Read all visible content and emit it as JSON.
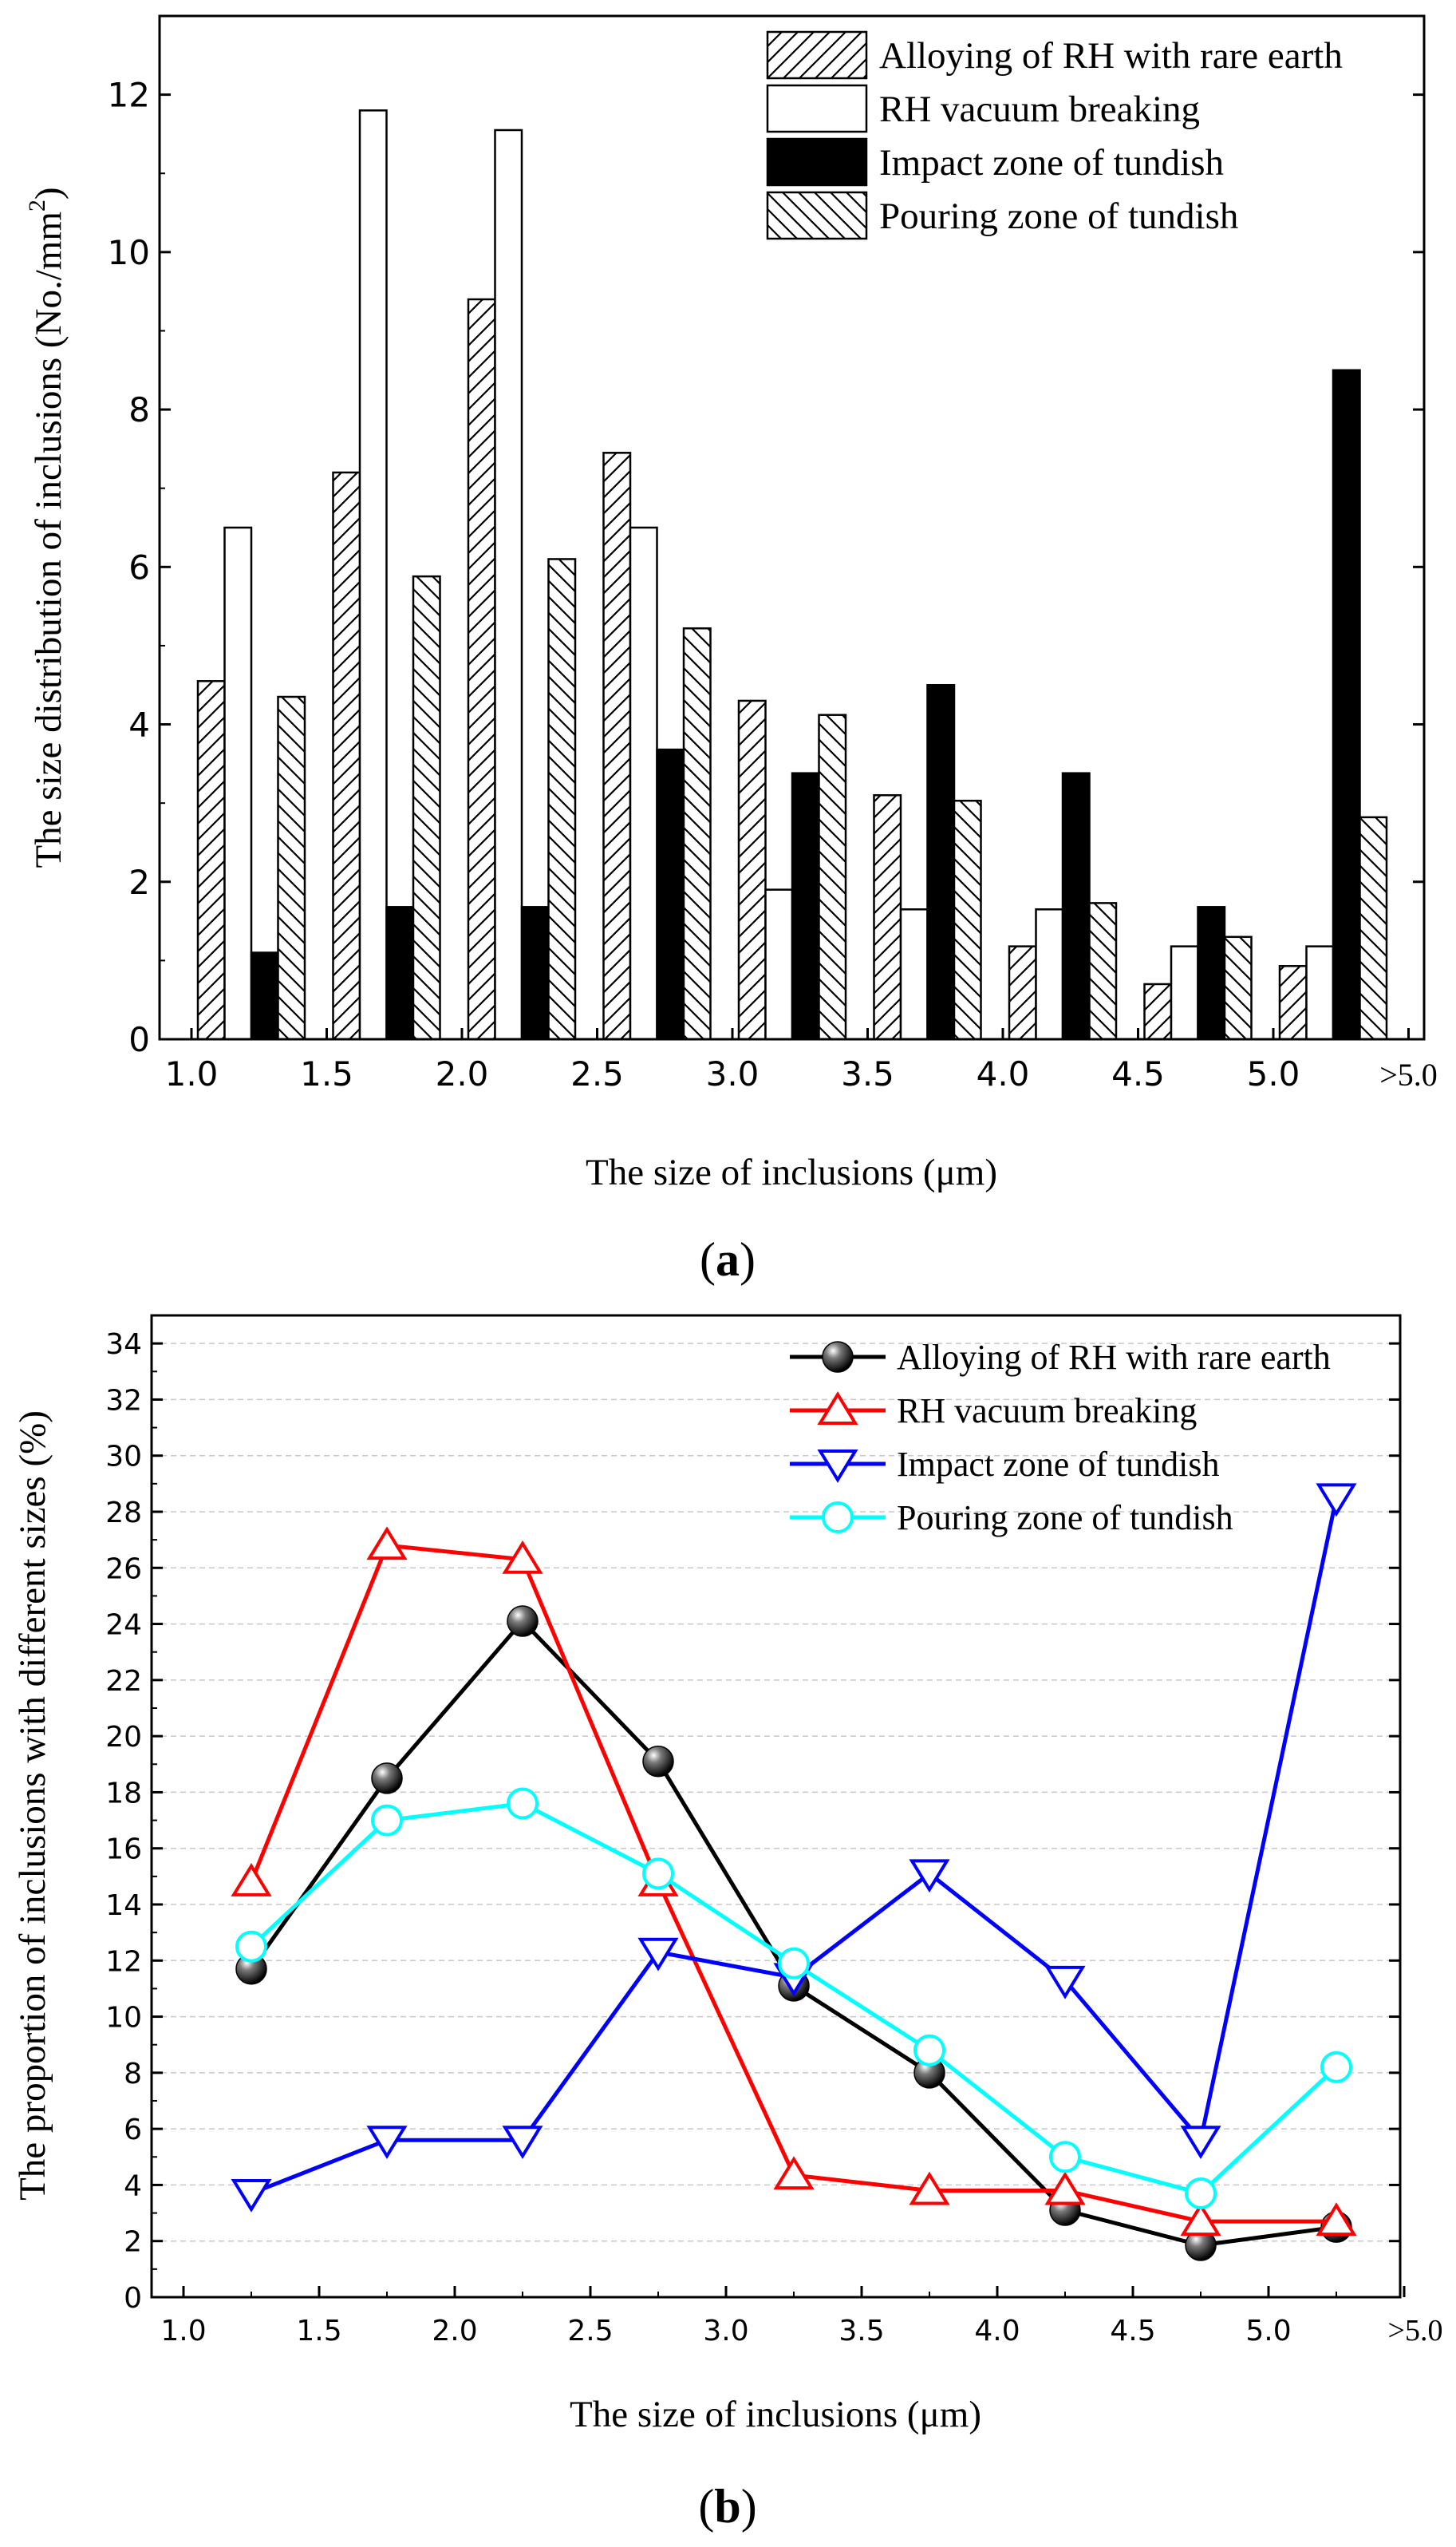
{
  "panels": {
    "a_label": "a",
    "b_label": "b"
  },
  "colors": {
    "axis": "#000000",
    "grid": "#c8c8c8",
    "red": "#ff0000",
    "blue": "#0000ff",
    "cyan": "#00ffff",
    "black": "#000000"
  },
  "chart_data": [
    {
      "type": "bar",
      "xlabel": "The size of inclusions (μm)",
      "ylabel": "The size distribution of inclusions (No./mm",
      "ylabel_sup": "2",
      "ylabel_close": ")",
      "ylim": [
        0,
        13
      ],
      "yticks": [
        0,
        2,
        4,
        6,
        8,
        10,
        12
      ],
      "xticks": [
        "1.0",
        "1.5",
        "2.0",
        "2.5",
        "3.0",
        "3.5",
        "4.0",
        "4.5",
        "5.0",
        ">5.0"
      ],
      "categories": [
        "1.0-1.5",
        "1.5-2.0",
        "2.0-2.5",
        "2.5-3.0",
        "3.0-3.5",
        "3.5-4.0",
        "4.0-4.5",
        "4.5-5.0",
        ">5.0"
      ],
      "legend_position": "top-right",
      "series": [
        {
          "name": "Alloying of RH with rare earth",
          "pattern": "forward-hatch",
          "values": [
            4.55,
            7.2,
            9.4,
            7.45,
            4.3,
            3.1,
            1.18,
            0.7,
            0.93
          ]
        },
        {
          "name": "RH vacuum breaking",
          "pattern": "white",
          "values": [
            6.5,
            11.8,
            11.55,
            6.5,
            1.9,
            1.65,
            1.65,
            1.18,
            1.18
          ]
        },
        {
          "name": "Impact zone of tundish",
          "pattern": "black",
          "values": [
            1.1,
            1.68,
            1.68,
            3.68,
            3.38,
            4.5,
            3.38,
            1.68,
            8.5
          ]
        },
        {
          "name": "Pouring zone of tundish",
          "pattern": "back-hatch",
          "values": [
            4.35,
            5.88,
            6.1,
            5.22,
            4.12,
            3.03,
            1.73,
            1.3,
            2.82
          ]
        }
      ]
    },
    {
      "type": "line",
      "xlabel": "The size of inclusions (μm)",
      "ylabel": "The proportion of inclusions with different sizes (%)",
      "ylim": [
        0,
        35
      ],
      "yticks": [
        0,
        2,
        4,
        6,
        8,
        10,
        12,
        14,
        16,
        18,
        20,
        22,
        24,
        26,
        28,
        30,
        32,
        34
      ],
      "grid": true,
      "xticks": [
        "1.0",
        "1.5",
        "2.0",
        "2.5",
        "3.0",
        "3.5",
        "4.0",
        "4.5",
        "5.0",
        ">5.0"
      ],
      "x": [
        1.25,
        1.75,
        2.25,
        2.75,
        3.25,
        3.75,
        4.25,
        4.75,
        5.25
      ],
      "legend_position": "top-right",
      "series": [
        {
          "name": "Alloying of RH with rare earth",
          "color": "#000000",
          "marker": "ball",
          "values": [
            11.7,
            18.5,
            24.1,
            19.1,
            11.1,
            8.0,
            3.1,
            1.85,
            2.5
          ]
        },
        {
          "name": "RH vacuum breaking",
          "color": "#ff0000",
          "marker": "triangle-up",
          "values": [
            14.8,
            26.8,
            26.3,
            14.8,
            4.35,
            3.8,
            3.8,
            2.7,
            2.7
          ]
        },
        {
          "name": "Impact zone of tundish",
          "color": "#0000ff",
          "marker": "triangle-down",
          "values": [
            3.7,
            5.6,
            5.6,
            12.3,
            11.4,
            15.1,
            11.3,
            5.6,
            28.5
          ]
        },
        {
          "name": "Pouring zone of tundish",
          "color": "#00ffff",
          "marker": "circle",
          "values": [
            12.5,
            17.0,
            17.6,
            15.1,
            11.9,
            8.8,
            5.0,
            3.7,
            8.2
          ]
        }
      ]
    }
  ]
}
